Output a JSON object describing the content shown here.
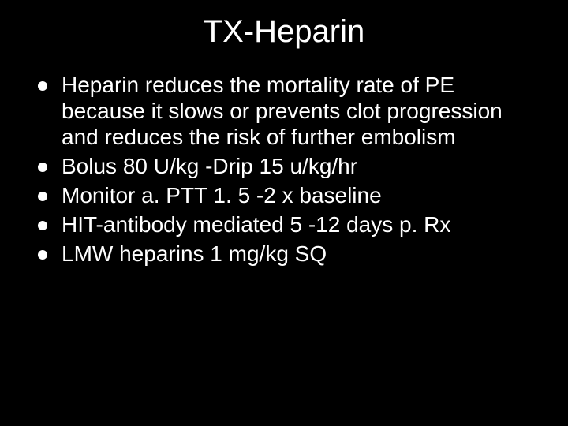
{
  "slide": {
    "background_color": "#000000",
    "text_color": "#ffffff",
    "bullet_color": "#ffffff",
    "title": "TX-Heparin",
    "title_fontsize": 40,
    "body_fontsize": 28,
    "bullets": [
      "Heparin reduces the mortality rate of PE because it slows or prevents clot progression and reduces the risk of further embolism",
      "Bolus 80 U/kg -Drip 15 u/kg/hr",
      "Monitor a. PTT 1. 5 -2 x baseline",
      "HIT-antibody mediated 5 -12 days p. Rx",
      "LMW heparins 1 mg/kg SQ"
    ]
  }
}
